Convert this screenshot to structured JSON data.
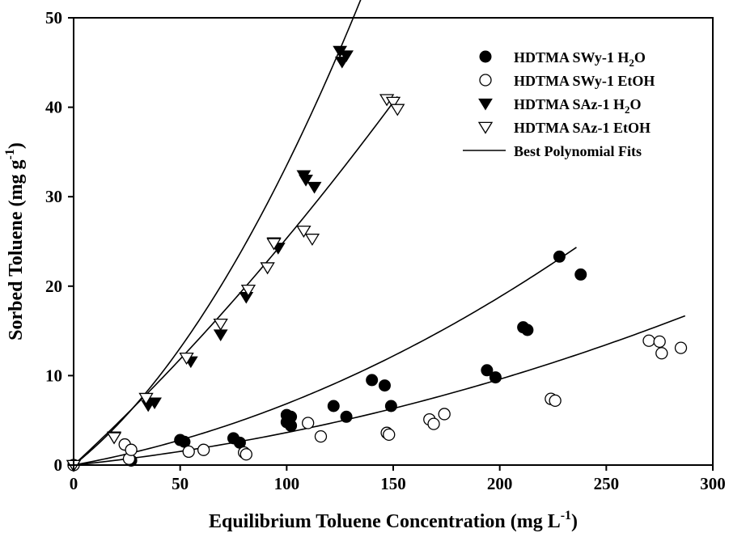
{
  "chart_data": {
    "type": "scatter",
    "title": "",
    "xlabel": {
      "main": "Equilibrium Toluene Concentration (mg L",
      "sup": "-1",
      "end": ")"
    },
    "ylabel": {
      "main": "Sorbed Toluene (mg g",
      "sup": "-1",
      "end": ")"
    },
    "xlim": [
      0,
      300
    ],
    "ylim": [
      0,
      50
    ],
    "xticks": [
      "0",
      "50",
      "100",
      "150",
      "200",
      "250",
      "300"
    ],
    "yticks": [
      "0",
      "10",
      "20",
      "30",
      "40",
      "50"
    ],
    "grid": false,
    "legend_position": "top-right",
    "series": [
      {
        "name": "HDTMA SWy-1 H2O",
        "label": {
          "main": "HDTMA SWy-1 H",
          "sub": "2",
          "end": "O"
        },
        "marker": "filled-circle",
        "points": [
          [
            0,
            0
          ],
          [
            27,
            0.5
          ],
          [
            50,
            2.8
          ],
          [
            52,
            2.6
          ],
          [
            75,
            3.0
          ],
          [
            78,
            2.5
          ],
          [
            100,
            5.6
          ],
          [
            100,
            4.8
          ],
          [
            102,
            5.4
          ],
          [
            102,
            4.4
          ],
          [
            122,
            6.6
          ],
          [
            128,
            5.4
          ],
          [
            140,
            9.5
          ],
          [
            146,
            8.9
          ],
          [
            149,
            6.6
          ],
          [
            194,
            10.6
          ],
          [
            198,
            9.8
          ],
          [
            211,
            15.4
          ],
          [
            213,
            15.1
          ],
          [
            228,
            23.3
          ],
          [
            238,
            21.3
          ]
        ]
      },
      {
        "name": "HDTMA SWy-1 EtOH",
        "label": {
          "main": "HDTMA SWy-1 EtOH",
          "sub": "",
          "end": ""
        },
        "marker": "open-circle",
        "points": [
          [
            0,
            0
          ],
          [
            24,
            2.3
          ],
          [
            26,
            0.7
          ],
          [
            27,
            1.7
          ],
          [
            54,
            1.5
          ],
          [
            61,
            1.7
          ],
          [
            80,
            1.4
          ],
          [
            81,
            1.2
          ],
          [
            110,
            4.7
          ],
          [
            116,
            3.2
          ],
          [
            147,
            3.6
          ],
          [
            148,
            3.4
          ],
          [
            167,
            5.1
          ],
          [
            169,
            4.6
          ],
          [
            174,
            5.7
          ],
          [
            224,
            7.4
          ],
          [
            226,
            7.2
          ],
          [
            270,
            13.9
          ],
          [
            275,
            13.8
          ],
          [
            276,
            12.5
          ],
          [
            285,
            13.1
          ]
        ]
      },
      {
        "name": "HDTMA SAz-1 H2O",
        "label": {
          "main": "HDTMA SAz-1 H",
          "sub": "2",
          "end": "O"
        },
        "marker": "filled-triangle-down",
        "points": [
          [
            0,
            0
          ],
          [
            19,
            3.2
          ],
          [
            35,
            6.7
          ],
          [
            38,
            7.0
          ],
          [
            55,
            11.6
          ],
          [
            69,
            14.6
          ],
          [
            81,
            18.8
          ],
          [
            94,
            24.9
          ],
          [
            96,
            24.3
          ],
          [
            108,
            32.4
          ],
          [
            109,
            31.9
          ],
          [
            113,
            31.1
          ],
          [
            125,
            46.3
          ],
          [
            126,
            45.1
          ],
          [
            128,
            45.8
          ]
        ]
      },
      {
        "name": "HDTMA SAz-1 EtOH",
        "label": {
          "main": "HDTMA SAz-1 EtOH",
          "sub": "",
          "end": ""
        },
        "marker": "open-triangle-down",
        "points": [
          [
            0,
            0
          ],
          [
            19,
            3.1
          ],
          [
            34,
            7.5
          ],
          [
            53,
            12.0
          ],
          [
            69,
            15.8
          ],
          [
            82,
            19.6
          ],
          [
            91,
            22.1
          ],
          [
            94,
            24.8
          ],
          [
            108,
            26.2
          ],
          [
            112,
            25.3
          ],
          [
            147,
            40.9
          ],
          [
            150,
            40.6
          ],
          [
            152,
            39.8
          ]
        ]
      }
    ],
    "fits": {
      "name": "Best Polynomial Fits",
      "curves": [
        {
          "series": "HDTMA SWy-1 H2O",
          "coef": [
            0,
            0.0432,
            0.000254
          ],
          "xmax": 236
        },
        {
          "series": "HDTMA SWy-1 EtOH",
          "coef": [
            0,
            0.0247,
            0.0001165
          ],
          "xmax": 287
        },
        {
          "series": "HDTMA SAz-1 H2O",
          "coef": [
            0,
            0.1883,
            0.001468
          ],
          "xmax": 136
        },
        {
          "series": "HDTMA SAz-1 EtOH",
          "coef": [
            0,
            0.2201,
            0.0003349
          ],
          "xmax": 152
        }
      ]
    }
  }
}
